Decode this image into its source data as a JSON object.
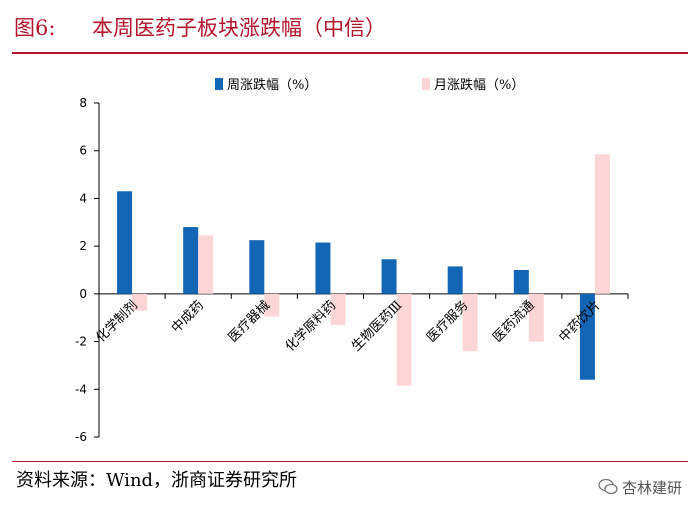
{
  "header": {
    "figure_no": "图6:",
    "title": "本周医药子板块涨跌幅（中信）"
  },
  "footer": {
    "source": "资料来源：Wind，浙商证券研究所",
    "watermark": "杏林建研"
  },
  "colors": {
    "weekly": "#1266b5",
    "monthly": "#fcd5d7",
    "title_red": "#b3142b"
  },
  "chart_data": {
    "type": "bar",
    "title": "本周医药子板块涨跌幅（中信）",
    "categories": [
      "化学制剂",
      "中成药",
      "医疗器械",
      "化学原料药",
      "生物医药Ⅲ",
      "医疗服务",
      "医药流通",
      "中药饮片"
    ],
    "series": [
      {
        "name": "周涨跌幅（%）",
        "values": [
          4.3,
          2.8,
          2.25,
          2.15,
          1.45,
          1.15,
          1.0,
          -3.6
        ]
      },
      {
        "name": "月涨跌幅（%）",
        "values": [
          -0.7,
          2.45,
          -0.95,
          -1.3,
          -3.85,
          -2.4,
          -2.0,
          5.85
        ]
      }
    ],
    "ylim": [
      -6,
      8
    ],
    "yticks": [
      -6,
      -4,
      -2,
      0,
      2,
      4,
      6,
      8
    ],
    "xlabel": "",
    "ylabel": "",
    "legend": "top"
  }
}
